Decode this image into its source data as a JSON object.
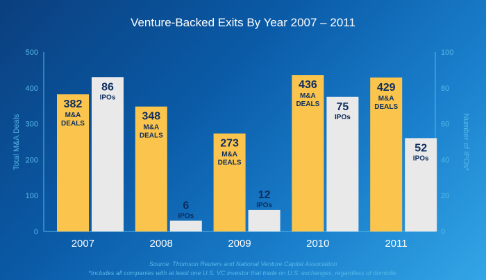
{
  "chart_data": {
    "type": "bar",
    "title": "Venture-Backed Exits By Year 2007 – 2011",
    "categories": [
      "2007",
      "2008",
      "2009",
      "2010",
      "2011"
    ],
    "series": [
      {
        "name": "M&A DEALS",
        "axis": "left",
        "color": "#fbc54d",
        "values": [
          382,
          348,
          273,
          436,
          429
        ]
      },
      {
        "name": "IPOs",
        "axis": "right",
        "color": "#e9e9ea",
        "values": [
          86,
          6,
          12,
          75,
          52
        ]
      }
    ],
    "ylabel": "Total M&A Deals",
    "ylabel_right": "Number of IPOs*",
    "ylim": [
      0,
      500
    ],
    "ylim_right": [
      0,
      100
    ],
    "yticks": [
      "0",
      "100",
      "200",
      "300",
      "400",
      "500"
    ],
    "yticks_right": [
      "0",
      "20",
      "40",
      "60",
      "80",
      "100"
    ],
    "label_lines": {
      "left": [
        "M&A",
        "DEALS"
      ],
      "right": [
        "IPOs"
      ]
    },
    "grid": false,
    "legend": "none"
  },
  "footer": {
    "source": "Source: Thomson Reuters and National Venture Capital Association",
    "note": "*Includes all companies with at least one U.S. VC investor that trade on U.S. exchanges, regardless of domicile."
  },
  "colors": {
    "axis": "#58b8e8",
    "text_on_bar": "#0d2d5e"
  }
}
